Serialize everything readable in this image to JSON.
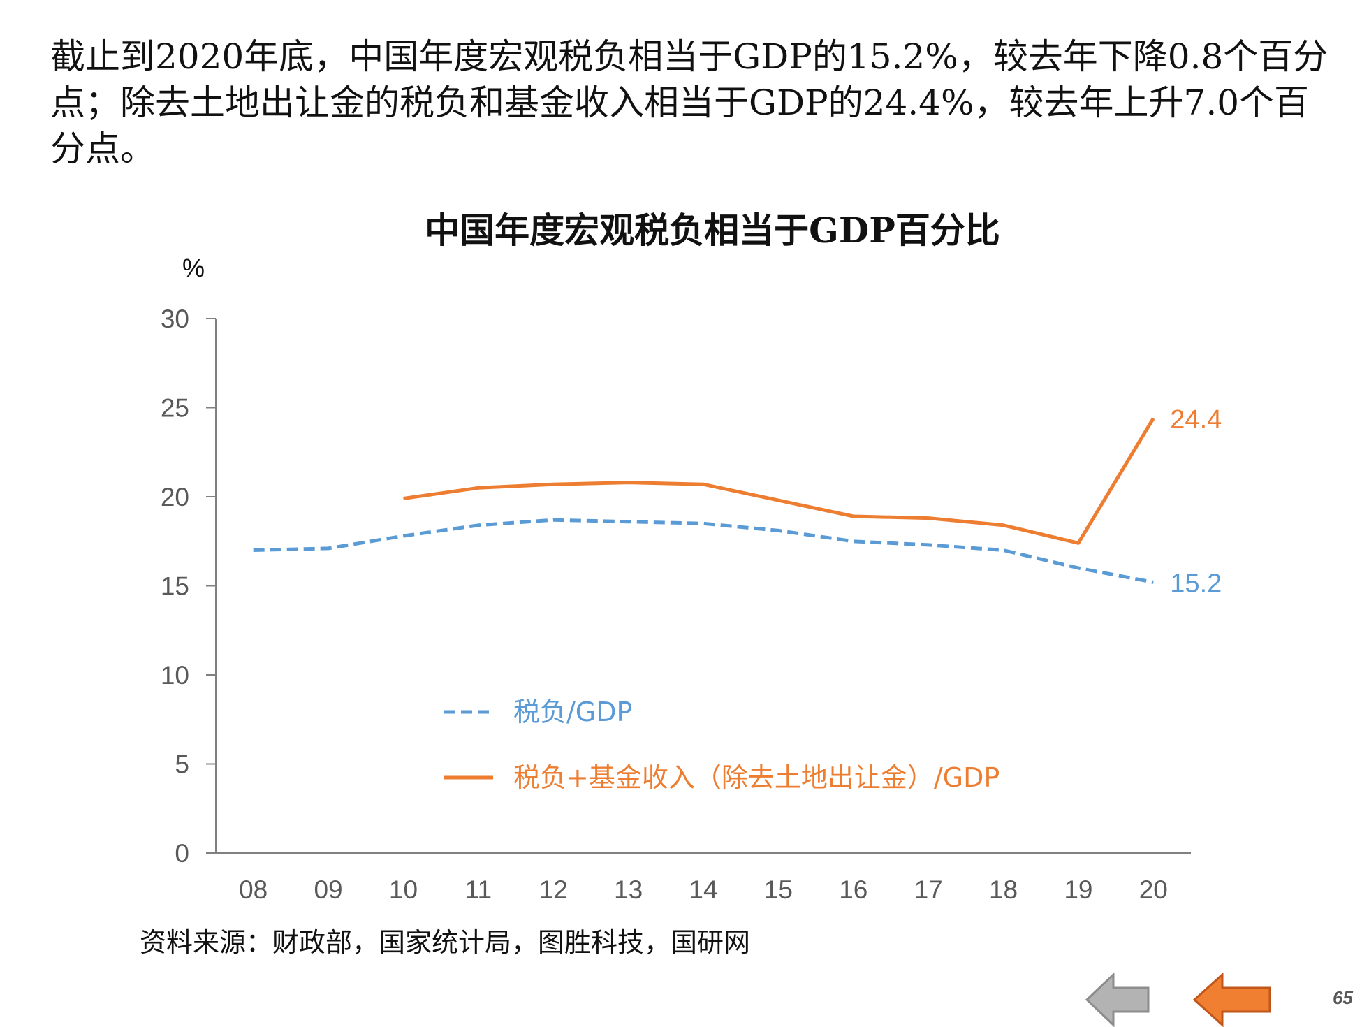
{
  "intro_text": "截止到2020年底，中国年度宏观税负相当于GDP的15.2%，较去年下降0.8个百分点；除去土地出让金的税负和基金收入相当于GDP的24.4%，较去年上升7.0个百分点。",
  "source_text": "资料来源：财政部，国家统计局，图胜科技，国研网",
  "page_number": "65",
  "navigation": {
    "prev_icon": "left-arrow-icon",
    "next_icon": "left-arrow-icon",
    "prev_color": "#b3b3b3",
    "next_color": "#f07f32"
  },
  "chart_data": {
    "type": "line",
    "title": "中国年度宏观税负相当于GDP百分比",
    "ylabel": "%",
    "xlabel": "",
    "categories": [
      "08",
      "09",
      "10",
      "11",
      "12",
      "13",
      "14",
      "15",
      "16",
      "17",
      "18",
      "19",
      "20"
    ],
    "ylim": [
      0,
      30
    ],
    "yticks": [
      0,
      5,
      10,
      15,
      20,
      25,
      30
    ],
    "grid": false,
    "legend_position": "center",
    "series": [
      {
        "name": "税负/GDP",
        "style": "dashed",
        "color": "#5b9bd5",
        "values": [
          17.0,
          17.1,
          17.8,
          18.4,
          18.7,
          18.6,
          18.5,
          18.1,
          17.5,
          17.3,
          17.0,
          16.0,
          15.2
        ],
        "end_label": "15.2"
      },
      {
        "name": "税负+基金收入（除去土地出让金）/GDP",
        "style": "solid",
        "color": "#ed7d31",
        "values": [
          null,
          null,
          19.9,
          20.5,
          20.7,
          20.8,
          20.7,
          19.8,
          18.9,
          18.8,
          18.4,
          17.4,
          24.4
        ],
        "end_label": "24.4"
      }
    ]
  }
}
